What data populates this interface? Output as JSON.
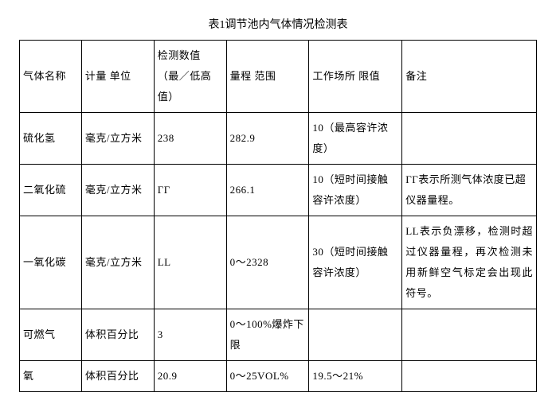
{
  "title": "表1调节池内气体情况检测表",
  "columns": [
    "气体名称",
    "计量\n单位",
    "检测数值\n（最／低高\n值）",
    "量程\n范围",
    "工作场所\n限值",
    "备注"
  ],
  "rows": [
    {
      "name": "硫化氢",
      "unit": "毫克/立方米",
      "value": "238",
      "range": "282.9",
      "limit": "10（最高容许浓度）",
      "note": ""
    },
    {
      "name": "二氧化硫",
      "unit": "毫克/立方米",
      "value": "ГГ",
      "range": "266.1",
      "limit": "10（短时间接触容许浓度）",
      "note": "ГГ表示所测气体浓度已超仪器量程。"
    },
    {
      "name": "一氧化碳",
      "unit": "毫克/立方米",
      "value": "LL",
      "range": "0～2328",
      "limit": "30（短时间接触容许浓度）",
      "note": "LL表示负漂移，检测时超过仪器量程，再次检测未用新鲜空气标定会出现此符号。"
    },
    {
      "name": "可燃气",
      "unit": "体积百分比",
      "value": "3",
      "range": "0～100%爆炸下限",
      "limit": "",
      "note": ""
    },
    {
      "name": "氧",
      "unit": "体积百分比",
      "value": "20.9",
      "range": "0～25VOL%",
      "limit": "19.5～21%",
      "note": ""
    }
  ]
}
